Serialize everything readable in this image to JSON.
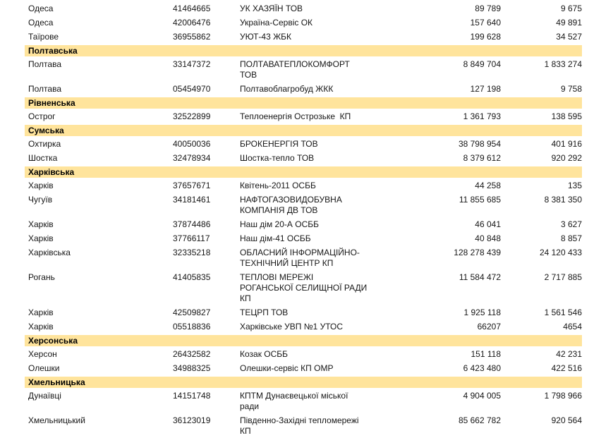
{
  "band_color": "#ffe49c",
  "text_color": "#161616",
  "table": {
    "columns": [
      "city",
      "edrpou_code",
      "company",
      "amount_1",
      "amount_2"
    ],
    "sections": [
      {
        "region": null,
        "rows": [
          {
            "city": "Одеса",
            "code": "41464665",
            "company": "УК ХАЗЯЇН ТОВ",
            "val1": "89 789",
            "val2": "9 675"
          },
          {
            "city": "Одеса",
            "code": "42006476",
            "company": "Україна-Сервіс ОК",
            "val1": "157 640",
            "val2": "49 891"
          },
          {
            "city": "Таїрове",
            "code": "36955862",
            "company": "УЮТ-43 ЖБК",
            "val1": "199 628",
            "val2": "34 527"
          }
        ]
      },
      {
        "region": "Полтавська",
        "rows": [
          {
            "city": "Полтава",
            "code": "33147372",
            "company": "ПОЛТАВАТЕПЛОКОМФОРТ\nТОВ",
            "val1": "8 849 704",
            "val2": "1 833 274"
          },
          {
            "city": "Полтава",
            "code": "05454970",
            "company": "Полтавоблагробуд ЖКК",
            "val1": "127 198",
            "val2": "9 758"
          }
        ]
      },
      {
        "region": "Рівненська",
        "rows": [
          {
            "city": "Острог",
            "code": "32522899",
            "company": "Теплоенергія Острозьке  КП",
            "val1": "1 361 793",
            "val2": "138 595"
          }
        ]
      },
      {
        "region": "Сумська",
        "rows": [
          {
            "city": "Охтирка",
            "code": "40050036",
            "company": "БРОКЕНЕРГІЯ ТОВ",
            "val1": "38 798 954",
            "val2": "401 916"
          },
          {
            "city": "Шостка",
            "code": "32478934",
            "company": "Шостка-тепло ТОВ",
            "val1": "8 379 612",
            "val2": "920 292"
          }
        ]
      },
      {
        "region": "Харківська",
        "rows": [
          {
            "city": "Харків",
            "code": "37657671",
            "company": "Квітень-2011 ОСББ",
            "val1": "44 258",
            "val2": "135"
          },
          {
            "city": "Чугуїв",
            "code": "34181461",
            "company": "НАФТОГАЗОВИДОБУВНА\nКОМПАНІЯ ДВ ТОВ",
            "val1": "11 855 685",
            "val2": "8 381 350"
          },
          {
            "city": "Харків",
            "code": "37874486",
            "company": "Наш дім 20-А ОСББ",
            "val1": "46 041",
            "val2": "3 627"
          },
          {
            "city": "Харків",
            "code": "37766117",
            "company": "Наш дім-41 ОСББ",
            "val1": "40 848",
            "val2": "8 857"
          },
          {
            "city": "Харківська",
            "code": "32335218",
            "company": "ОБЛАСНИЙ ІНФОРМАЦІЙНО-\nТЕХНІЧНИЙ ЦЕНТР КП",
            "val1": "128 278 439",
            "val2": "24 120 433"
          },
          {
            "city": "Рогань",
            "code": "41405835",
            "company": "ТЕПЛОВІ МЕРЕЖІ\nРОГАНСЬКОЇ СЕЛИЩНОЇ РАДИ\nКП",
            "val1": "11 584 472",
            "val2": "2 717 885"
          },
          {
            "city": "Харків",
            "code": "42509827",
            "company": "ТЕЦРП ТОВ",
            "val1": "1 925 118",
            "val2": "1 561 546"
          },
          {
            "city": "Харків",
            "code": "05518836",
            "company": "Харківське УВП №1 УТОС",
            "val1": "66207",
            "val2": "4654"
          }
        ]
      },
      {
        "region": "Херсонська",
        "rows": [
          {
            "city": "Херсон",
            "code": "26432582",
            "company": "Козак ОСББ",
            "val1": "151 118",
            "val2": "42 231"
          },
          {
            "city": "Олешки",
            "code": "34988325",
            "company": "Олешки-сервіс КП ОМР",
            "val1": "6 423 480",
            "val2": "422 516"
          }
        ]
      },
      {
        "region": "Хмельницька",
        "rows": [
          {
            "city": "Дунаївці",
            "code": "14151748",
            "company": "КПТМ Дунаєвецької міської\nради",
            "val1": "4 904 005",
            "val2": "1 798 966"
          },
          {
            "city": "Хмельницький",
            "code": "36123019",
            "company": "Південно-Західні тепломережі\nКП",
            "val1": "85 662 782",
            "val2": "920 564"
          }
        ]
      }
    ]
  }
}
